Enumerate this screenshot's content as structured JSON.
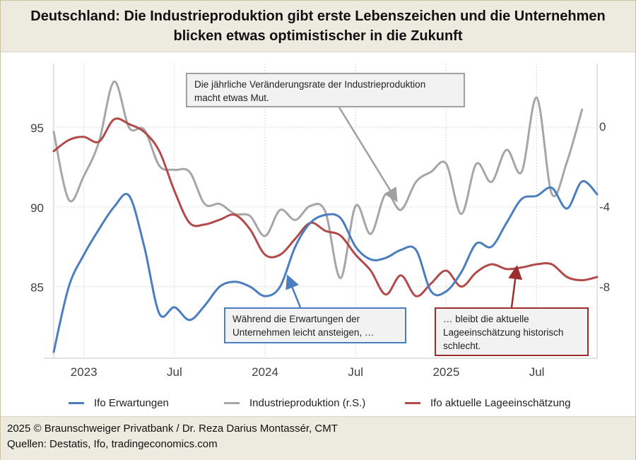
{
  "header": {
    "title_line1": "Deutschland: Die Industrieproduktion gibt erste Lebenszeichen und die Unternehmen",
    "title_line2": "blicken etwas optimistischer in die Zukunft"
  },
  "annotations": {
    "gray_line1": "Die jährliche Veränderungsrate der Industrieproduktion",
    "gray_line2": "macht etwas Mut.",
    "blue_line1": "Während die Erwartungen der",
    "blue_line2": "Unternehmen leicht ansteigen, …",
    "red_line1": "… bleibt die aktuelle",
    "red_line2": "Lageeinschätzung historisch",
    "red_line3": "schlecht."
  },
  "footer": {
    "line1": "2025 © Braunschweiger Privatbank / Dr. Reza Darius Montassér, CMT",
    "line2": "Quellen: Destatis, Ifo, tradingeconomics.com"
  },
  "colors": {
    "ifo_erwartungen": "#4a7ebf",
    "industrieproduktion": "#a6a6a6",
    "ifo_lage": "#b24a4a"
  },
  "chart_data": {
    "type": "line",
    "title": "Deutschland: Die Industrieproduktion gibt erste Lebenszeichen und die Unternehmen blicken etwas optimistischer in die Zukunft",
    "xlabel": "",
    "ylabel": "",
    "x": [
      "2022-11",
      "2022-12",
      "2023-01",
      "2023-02",
      "2023-03",
      "2023-04",
      "2023-05",
      "2023-06",
      "2023-07",
      "2023-08",
      "2023-09",
      "2023-10",
      "2023-11",
      "2023-12",
      "2024-01",
      "2024-02",
      "2024-03",
      "2024-04",
      "2024-05",
      "2024-06",
      "2024-07",
      "2024-08",
      "2024-09",
      "2024-10",
      "2024-11",
      "2024-12",
      "2025-01",
      "2025-02",
      "2025-03",
      "2025-04",
      "2025-05",
      "2025-06",
      "2025-07",
      "2025-08",
      "2025-09",
      "2025-10",
      "2025-11"
    ],
    "x_tick_labels": [
      "2023",
      "Jul",
      "2024",
      "Jul",
      "2025",
      "Jul"
    ],
    "x_tick_positions": [
      "2023-01",
      "2023-07",
      "2024-01",
      "2024-07",
      "2025-01",
      "2025-07"
    ],
    "y_left": {
      "ticks": [
        85,
        90,
        95
      ],
      "range": [
        80.5,
        99
      ]
    },
    "y_right": {
      "ticks": [
        -8,
        -4,
        0
      ],
      "range": [
        -11.6,
        3.1
      ]
    },
    "grid": true,
    "legend_position": "bottom",
    "series": [
      {
        "name": "Ifo Erwartungen",
        "axis": "left",
        "color": "#4a7ebf",
        "values": [
          80.9,
          85.0,
          87.0,
          88.6,
          90.0,
          90.7,
          87.5,
          83.3,
          83.7,
          82.9,
          83.8,
          85.0,
          85.3,
          85.0,
          84.4,
          85.0,
          87.5,
          89.0,
          89.5,
          89.3,
          87.5,
          86.7,
          86.8,
          87.3,
          87.3,
          84.7,
          84.7,
          85.9,
          87.7,
          87.5,
          89.0,
          90.5,
          90.7,
          91.2,
          89.9,
          91.6,
          90.8
        ]
      },
      {
        "name": "Industrieproduktion (r.S.)",
        "axis": "right",
        "color": "#a6a6a6",
        "values": [
          -0.3,
          -3.7,
          -2.5,
          -0.8,
          2.2,
          -0.1,
          -0.2,
          -2.0,
          -2.2,
          -2.3,
          -3.9,
          -3.9,
          -4.4,
          -4.5,
          -5.5,
          -4.2,
          -4.7,
          -4.0,
          -4.3,
          -7.6,
          -4.0,
          -5.4,
          -3.4,
          -4.2,
          -2.8,
          -2.3,
          -1.9,
          -4.4,
          -1.9,
          -2.8,
          -1.2,
          -2.3,
          1.4,
          -3.4,
          -1.8,
          0.8,
          null
        ]
      },
      {
        "name": "Ifo aktuelle Lageeinschätzung",
        "axis": "left",
        "color": "#b24a4a",
        "values": [
          93.5,
          94.2,
          94.4,
          94.1,
          95.5,
          95.2,
          94.7,
          93.5,
          91.0,
          89.0,
          88.9,
          89.2,
          89.5,
          88.6,
          87.0,
          87.0,
          88.0,
          89.0,
          88.5,
          88.2,
          87.0,
          86.0,
          84.5,
          85.7,
          84.4,
          85.2,
          86.0,
          85.0,
          85.9,
          86.4,
          86.1,
          86.2,
          86.4,
          86.4,
          85.6,
          85.4,
          85.6
        ]
      }
    ],
    "legend": [
      "Ifo Erwartungen",
      "Industrieproduktion (r.S.)",
      "Ifo aktuelle Lageeinschätzung"
    ],
    "annotations": [
      "Die jährliche Veränderungsrate der Industrieproduktion macht etwas Mut.",
      "Während die Erwartungen der Unternehmen leicht ansteigen, …",
      "… bleibt die aktuelle Lageeinschätzung historisch schlecht."
    ]
  }
}
